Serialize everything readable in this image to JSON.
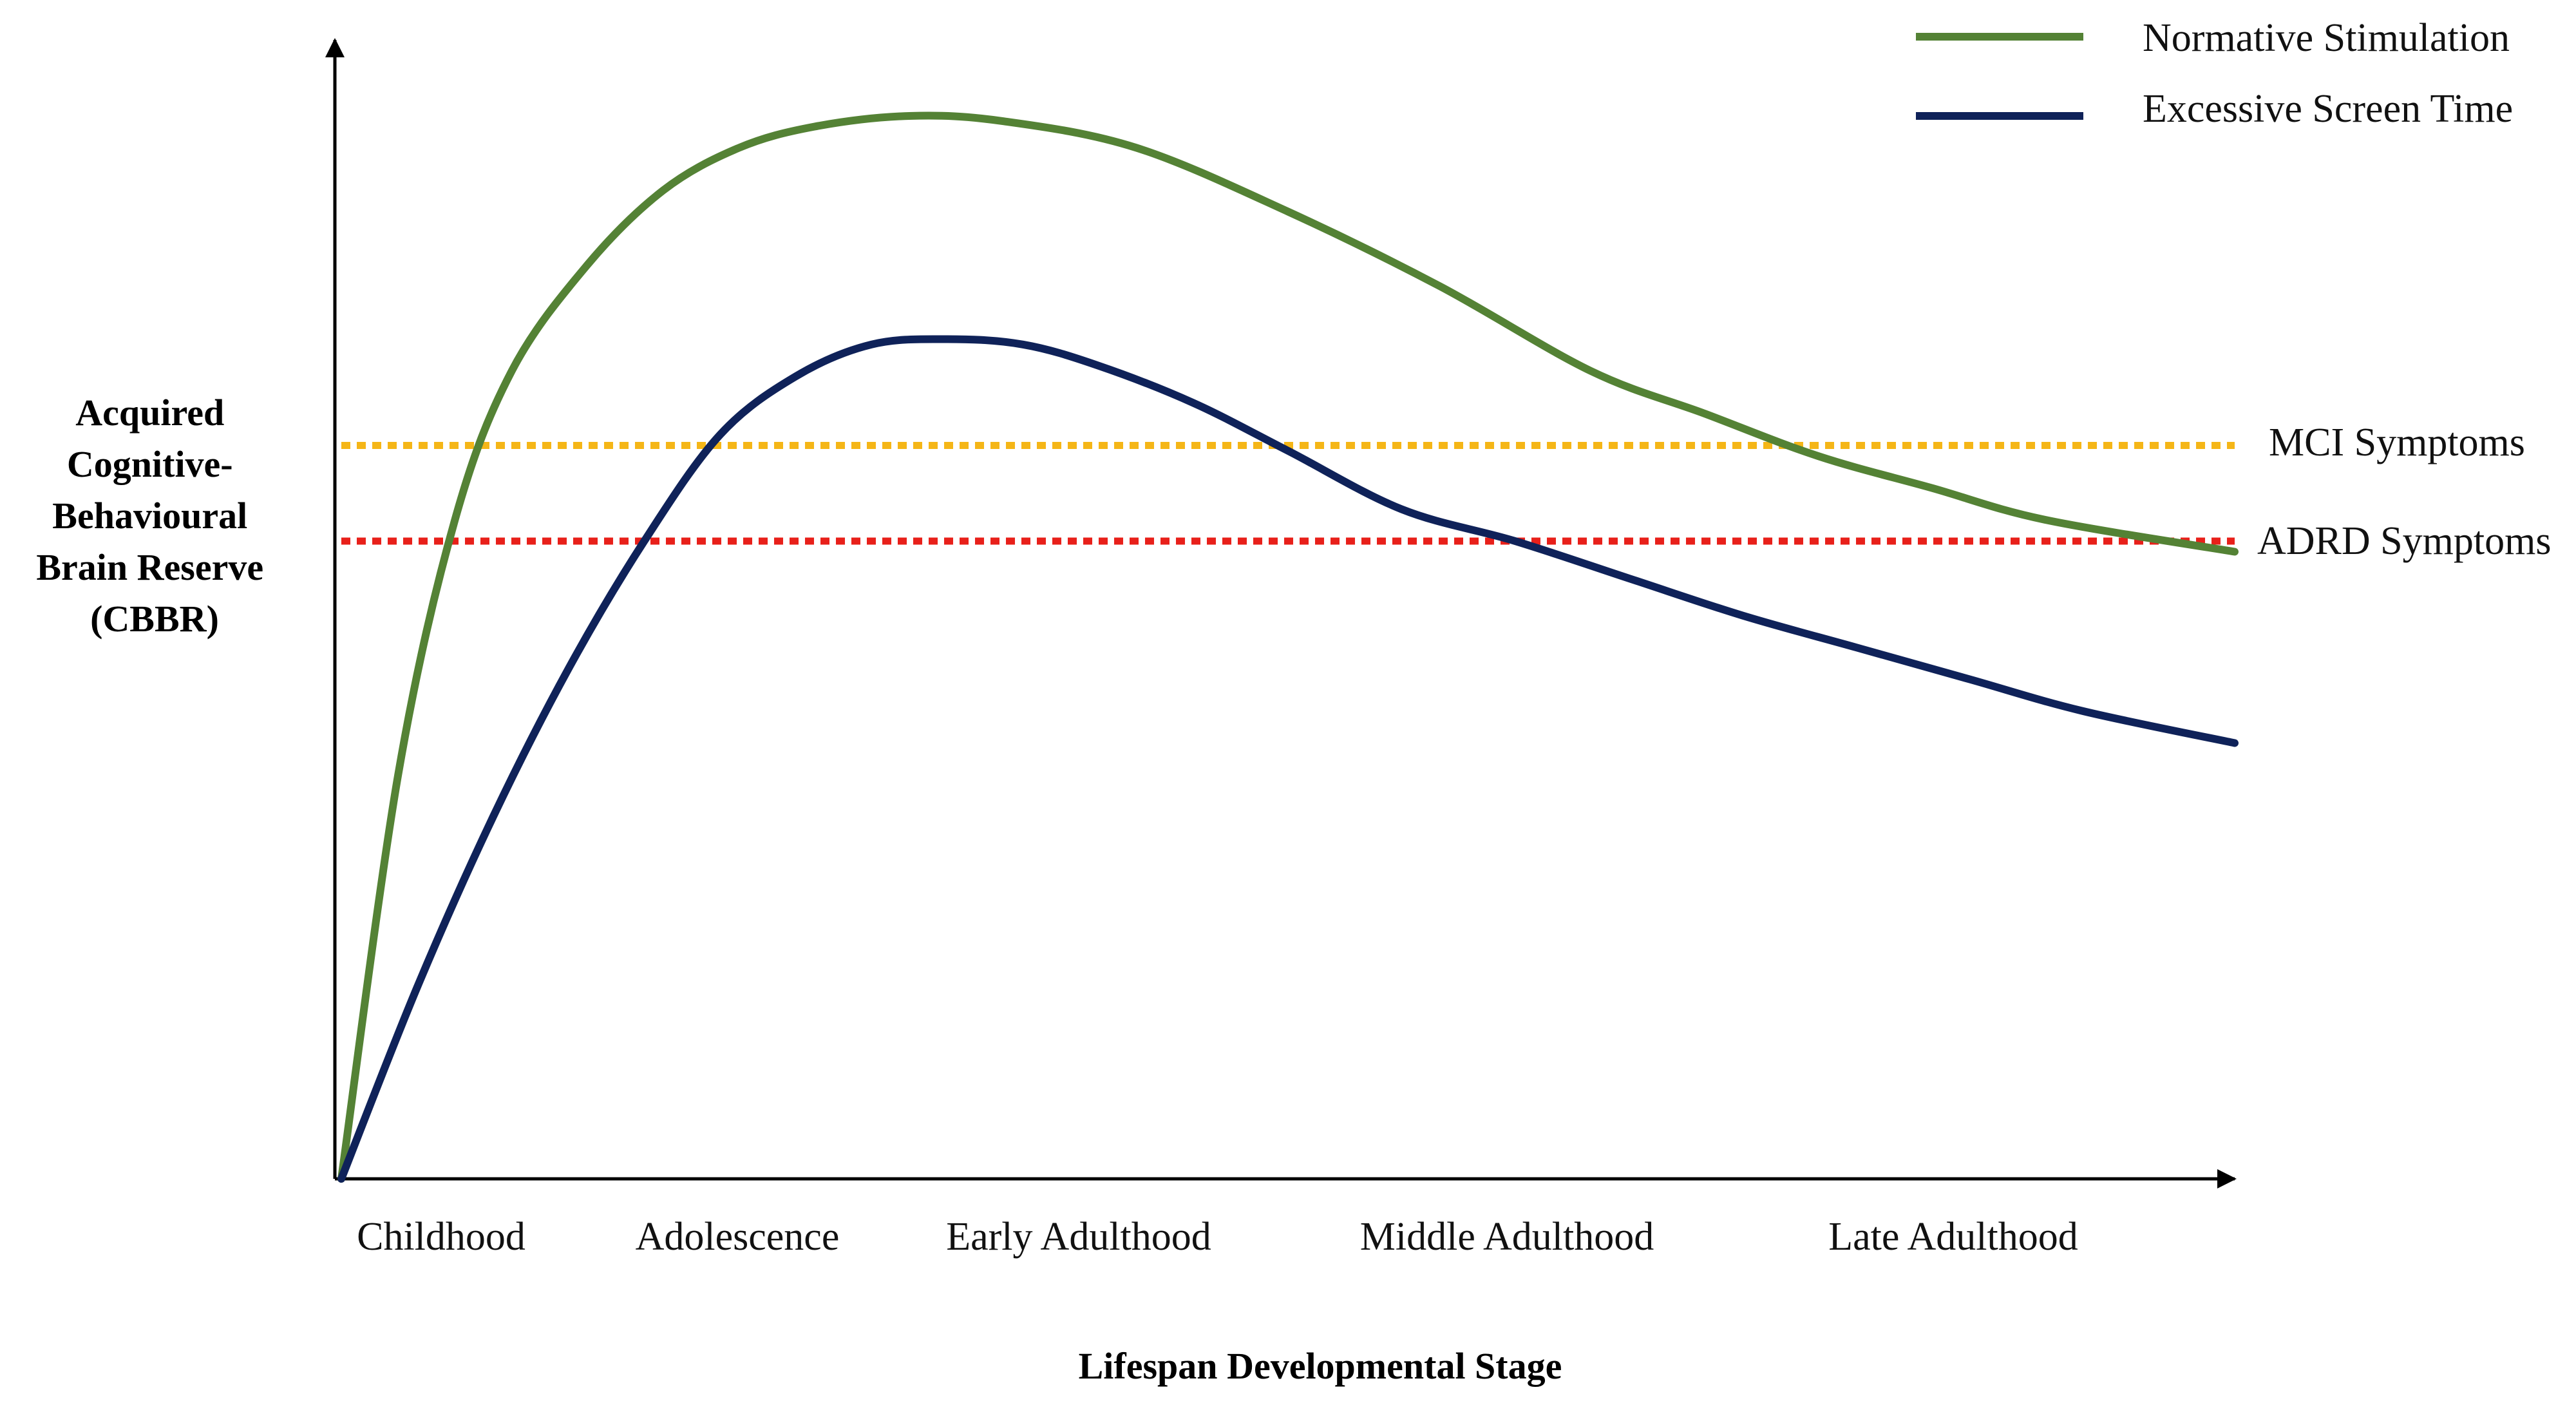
{
  "chart_data": {
    "type": "line",
    "title": "",
    "xlabel": "Lifespan Developmental Stage",
    "ylabel": "Acquired Cognitive-Behavioural Brain Reserve (CBBR)",
    "ylabel_lines": [
      "Acquired",
      "Cognitive-",
      "Behavioural",
      "Brain Reserve",
      "(CBBR)"
    ],
    "categories": [
      "Childhood",
      "Adolescence",
      "Early Adulthood",
      "Middle Adulthood",
      "Late Adulthood"
    ],
    "xlim": [
      0,
      100
    ],
    "ylim": [
      0,
      100
    ],
    "grid": false,
    "legend_position": "top-right",
    "series": [
      {
        "name": "Normative Stimulation",
        "color": "#548235",
        "x": [
          0,
          3,
          6,
          9,
          13,
          17,
          21,
          25,
          30,
          35,
          42,
          50,
          58,
          66,
          72,
          78,
          84,
          90,
          100
        ],
        "y": [
          0,
          38,
          62,
          76,
          86,
          93,
          97,
          99,
          100,
          99.5,
          97,
          91,
          84,
          76,
          72,
          68,
          65,
          62,
          59
        ]
      },
      {
        "name": "Excessive Screen Time",
        "color": "#0f2259",
        "x": [
          0,
          4,
          8,
          12,
          16,
          20,
          24,
          28,
          32,
          36,
          40,
          45,
          50,
          56,
          62,
          68,
          74,
          80,
          86,
          92,
          100
        ],
        "y": [
          0,
          18,
          34,
          48,
          60,
          70,
          75.5,
          78.5,
          79,
          78.5,
          76.5,
          73,
          68.5,
          63,
          60,
          56.5,
          53,
          50,
          47,
          44,
          41
        ]
      }
    ],
    "thresholds": [
      {
        "label": "MCI Symptoms",
        "value": 69,
        "color": "#f5b617"
      },
      {
        "label": "ADRD Symptoms",
        "value": 60,
        "color": "#e8201a"
      }
    ]
  }
}
